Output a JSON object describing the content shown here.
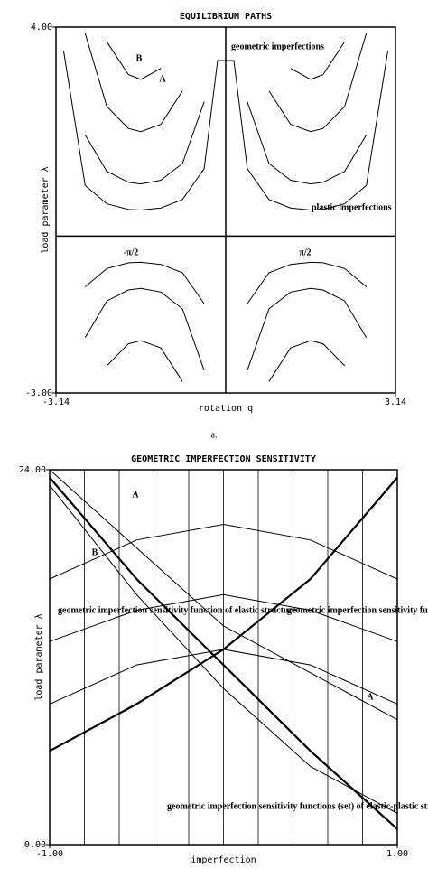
{
  "chart_data": [
    {
      "type": "line",
      "title": "EQUILIBRIUM PATHS",
      "x_label": "rotation q",
      "y_label": "load parameter λ",
      "xlim": [
        -3.14,
        3.14
      ],
      "ylim": [
        -3,
        4
      ],
      "xticks": [
        -3.14,
        3.14
      ],
      "yticks": [
        {
          "value": -3,
          "label": "-3.00"
        },
        {
          "value": 4,
          "label": "4.00"
        }
      ],
      "color": "#000000",
      "x": [
        -3.0,
        -2.6,
        -2.2,
        -1.8,
        -1.57,
        -1.2,
        -0.8,
        -0.4,
        -0.15,
        0.15,
        0.4,
        0.8,
        1.2,
        1.57,
        1.8,
        2.2,
        2.6,
        3.0
      ],
      "series": [
        {
          "values": [
            3.55,
            0.97,
            0.62,
            0.51,
            0.5,
            0.54,
            0.7,
            1.29,
            3.36,
            3.36,
            1.29,
            0.7,
            0.54,
            0.5,
            0.51,
            0.62,
            0.97,
            3.55
          ]
        },
        {
          "values": [
            null,
            1.94,
            1.24,
            1.03,
            1,
            1.07,
            1.39,
            2.57,
            null,
            null,
            2.57,
            1.39,
            1.07,
            1,
            1.03,
            1.24,
            1.94,
            null
          ]
        },
        {
          "values": [
            null,
            3.88,
            2.48,
            2.06,
            2,
            2.14,
            2.78,
            null,
            null,
            null,
            null,
            2.78,
            2.14,
            2,
            2.06,
            2.48,
            3.88,
            null
          ]
        },
        {
          "values": [
            null,
            null,
            3.72,
            3.09,
            3,
            3.21,
            null,
            null,
            null,
            null,
            null,
            null,
            3.21,
            3,
            3.09,
            3.72,
            null,
            null
          ]
        },
        {
          "values": [
            null,
            -0.97,
            -0.62,
            -0.51,
            -0.5,
            -0.54,
            -0.7,
            -1.29,
            null,
            null,
            -1.29,
            -0.7,
            -0.54,
            -0.5,
            -0.51,
            -0.62,
            -0.97,
            null
          ]
        },
        {
          "values": [
            null,
            -1.94,
            -1.24,
            -1.03,
            -1,
            -1.07,
            -1.39,
            -2.57,
            null,
            null,
            -2.57,
            -1.39,
            -1.07,
            -1,
            -1.03,
            -1.24,
            -1.94,
            null
          ]
        },
        {
          "values": [
            null,
            null,
            -2.48,
            -2.06,
            -2,
            -2.14,
            -2.78,
            null,
            null,
            null,
            null,
            -2.78,
            -2.14,
            -2,
            -2.06,
            -2.48,
            null,
            null
          ]
        }
      ],
      "annotations": [
        "B",
        "A",
        "geometric imperfections",
        "plastic imperfections",
        "-π/2",
        "π/2"
      ],
      "caption": "a."
    },
    {
      "type": "line",
      "title": "GEOMETRIC IMPERFECTION SENSITIVITY",
      "x_label": "imperfection",
      "y_label": "load parameter λ",
      "xlim": [
        -1,
        1
      ],
      "ylim": [
        0,
        24
      ],
      "xticks": [
        {
          "value": -1,
          "label": "-1.00"
        },
        {
          "value": 1,
          "label": "1.00"
        }
      ],
      "yticks": [
        {
          "value": 0,
          "label": "0.00"
        },
        {
          "value": 24,
          "label": "24.00"
        }
      ],
      "color": "#000000",
      "x": [
        -1,
        -0.5,
        0,
        0.5,
        1
      ],
      "series": [
        {
          "values": [
            23.5,
            17,
            11.5,
            6,
            1
          ]
        },
        {
          "values": [
            6,
            9,
            12.5,
            17,
            23.5
          ]
        },
        {
          "values": [
            24,
            19,
            14,
            11,
            8
          ]
        },
        {
          "values": [
            23,
            16,
            10,
            5,
            2
          ]
        },
        {
          "values": [
            13,
            15,
            16,
            15,
            13
          ]
        },
        {
          "values": [
            9,
            11.5,
            12.5,
            11.5,
            9
          ]
        },
        {
          "values": [
            17,
            19.5,
            20.5,
            19.5,
            17
          ]
        }
      ],
      "annotations": [
        "A",
        "B",
        "A",
        "geometric imperfection sensitivity function of elastic structure",
        "geometric imperfection sensitivity functions of plastic structure",
        "geometric imperfection sensitivity functions (set) of elastic-plastic structure"
      ]
    }
  ]
}
